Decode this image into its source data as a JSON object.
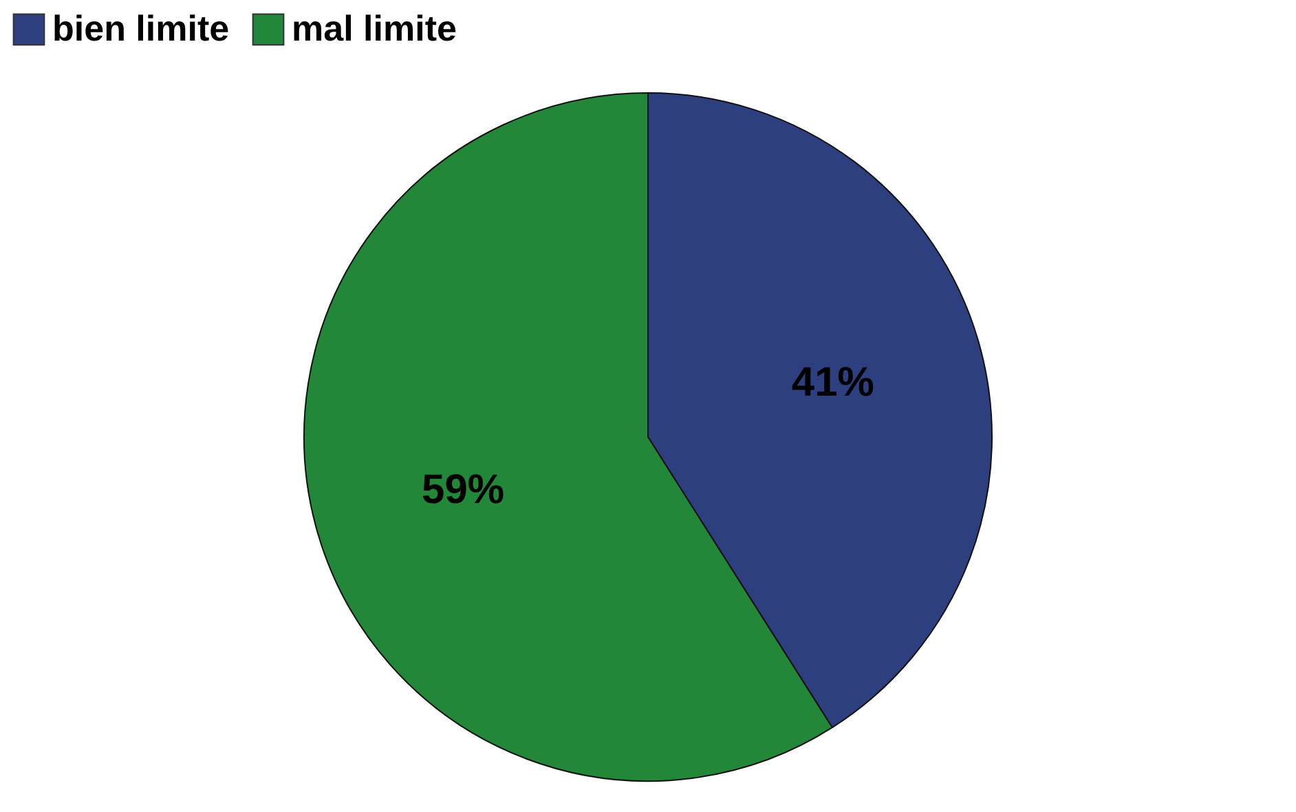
{
  "chart_data": {
    "type": "pie",
    "categories": [
      "bien limite",
      "mal limite"
    ],
    "values": [
      41,
      59
    ],
    "colors": [
      "#2e3f80",
      "#23873a"
    ],
    "value_labels": [
      "41%",
      "59%"
    ],
    "legend": "top"
  }
}
